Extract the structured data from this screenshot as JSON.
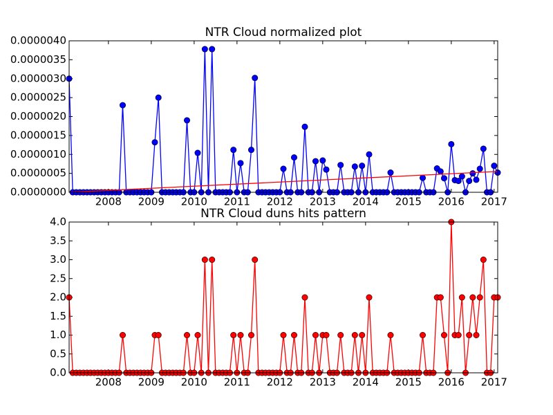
{
  "chart_data": [
    {
      "type": "line",
      "title": "NTR Cloud normalized plot",
      "x": [
        2007.083,
        2007.167,
        2007.25,
        2007.333,
        2007.417,
        2007.5,
        2007.583,
        2007.667,
        2007.75,
        2007.833,
        2007.917,
        2008,
        2008.083,
        2008.167,
        2008.25,
        2008.333,
        2008.417,
        2008.5,
        2008.583,
        2008.667,
        2008.75,
        2008.833,
        2008.917,
        2009,
        2009.083,
        2009.167,
        2009.25,
        2009.333,
        2009.417,
        2009.5,
        2009.583,
        2009.667,
        2009.75,
        2009.833,
        2009.917,
        2010,
        2010.083,
        2010.167,
        2010.25,
        2010.333,
        2010.417,
        2010.5,
        2010.583,
        2010.667,
        2010.75,
        2010.833,
        2010.917,
        2011,
        2011.083,
        2011.167,
        2011.25,
        2011.333,
        2011.417,
        2011.5,
        2011.583,
        2011.667,
        2011.75,
        2011.833,
        2011.917,
        2012,
        2012.083,
        2012.167,
        2012.25,
        2012.333,
        2012.417,
        2012.5,
        2012.583,
        2012.667,
        2012.75,
        2012.833,
        2012.917,
        2013,
        2013.083,
        2013.167,
        2013.25,
        2013.333,
        2013.417,
        2013.5,
        2013.583,
        2013.667,
        2013.75,
        2013.833,
        2013.917,
        2014,
        2014.083,
        2014.167,
        2014.25,
        2014.333,
        2014.417,
        2014.5,
        2014.583,
        2014.667,
        2014.75,
        2014.833,
        2014.917,
        2015,
        2015.083,
        2015.167,
        2015.25,
        2015.333,
        2015.417,
        2015.5,
        2015.583,
        2015.667,
        2015.75,
        2015.833,
        2015.917,
        2016,
        2016.083,
        2016.167,
        2016.25,
        2016.333,
        2016.417,
        2016.5,
        2016.583,
        2016.667,
        2016.75,
        2016.833,
        2016.917,
        2017,
        2017.083
      ],
      "series": [
        {
          "color": "#0000ff",
          "values": [
            3e-06,
            0,
            0,
            0,
            0,
            0,
            0,
            0,
            0,
            0,
            0,
            0,
            0,
            0,
            0,
            2.3e-06,
            0,
            0,
            0,
            0,
            0,
            0,
            0,
            0,
            1.32e-06,
            2.5e-06,
            0,
            0,
            0,
            0,
            0,
            0,
            0,
            1.9e-06,
            0,
            0,
            1.04e-06,
            0,
            3.78e-06,
            0,
            3.78e-06,
            0,
            0,
            0,
            0,
            0,
            1.12e-06,
            0,
            7.7e-07,
            0,
            0,
            1.12e-06,
            3.02e-06,
            0,
            0,
            0,
            0,
            0,
            0,
            0,
            6.2e-07,
            0,
            0,
            9.2e-07,
            0,
            0,
            1.73e-06,
            0,
            0,
            8.2e-07,
            0,
            8.4e-07,
            6e-07,
            0,
            0,
            0,
            7.2e-07,
            0,
            0,
            0,
            6.8e-07,
            0,
            7e-07,
            0,
            1e-06,
            0,
            0,
            0,
            0,
            0,
            5.2e-07,
            0,
            0,
            0,
            0,
            0,
            0,
            0,
            0,
            3.8e-07,
            0,
            0,
            0,
            6.3e-07,
            5.5e-07,
            3.7e-07,
            0,
            1.27e-06,
            3.2e-07,
            3e-07,
            4.2e-07,
            0,
            3e-07,
            5e-07,
            3.3e-07,
            6.2e-07,
            1.15e-06,
            0,
            0,
            7e-07,
            5.2e-07
          ]
        }
      ],
      "trend": {
        "x": [
          2007.083,
          2017.083
        ],
        "values": [
          0,
          5.5e-07
        ],
        "color": "#ff0000"
      },
      "xlim": [
        2007.083,
        2017.083
      ],
      "xticks": [
        2008,
        2009,
        2010,
        2011,
        2012,
        2013,
        2014,
        2015,
        2016,
        2017
      ],
      "ylim": [
        0,
        4e-06
      ],
      "yticks": [
        {
          "value": 0,
          "label": "0.0000000"
        },
        {
          "value": 5e-07,
          "label": "0.0000005"
        },
        {
          "value": 1e-06,
          "label": "0.0000010"
        },
        {
          "value": 1.5e-06,
          "label": "0.0000015"
        },
        {
          "value": 2e-06,
          "label": "0.0000020"
        },
        {
          "value": 2.5e-06,
          "label": "0.0000025"
        },
        {
          "value": 3e-06,
          "label": "0.0000030"
        },
        {
          "value": 3.5e-06,
          "label": "0.0000035"
        },
        {
          "value": 4e-06,
          "label": "0.0000040"
        }
      ]
    },
    {
      "type": "line",
      "title": "NTR Cloud duns hits pattern",
      "x": [
        2007.083,
        2007.167,
        2007.25,
        2007.333,
        2007.417,
        2007.5,
        2007.583,
        2007.667,
        2007.75,
        2007.833,
        2007.917,
        2008,
        2008.083,
        2008.167,
        2008.25,
        2008.333,
        2008.417,
        2008.5,
        2008.583,
        2008.667,
        2008.75,
        2008.833,
        2008.917,
        2009,
        2009.083,
        2009.167,
        2009.25,
        2009.333,
        2009.417,
        2009.5,
        2009.583,
        2009.667,
        2009.75,
        2009.833,
        2009.917,
        2010,
        2010.083,
        2010.167,
        2010.25,
        2010.333,
        2010.417,
        2010.5,
        2010.583,
        2010.667,
        2010.75,
        2010.833,
        2010.917,
        2011,
        2011.083,
        2011.167,
        2011.25,
        2011.333,
        2011.417,
        2011.5,
        2011.583,
        2011.667,
        2011.75,
        2011.833,
        2011.917,
        2012,
        2012.083,
        2012.167,
        2012.25,
        2012.333,
        2012.417,
        2012.5,
        2012.583,
        2012.667,
        2012.75,
        2012.833,
        2012.917,
        2013,
        2013.083,
        2013.167,
        2013.25,
        2013.333,
        2013.417,
        2013.5,
        2013.583,
        2013.667,
        2013.75,
        2013.833,
        2013.917,
        2014,
        2014.083,
        2014.167,
        2014.25,
        2014.333,
        2014.417,
        2014.5,
        2014.583,
        2014.667,
        2014.75,
        2014.833,
        2014.917,
        2015,
        2015.083,
        2015.167,
        2015.25,
        2015.333,
        2015.417,
        2015.5,
        2015.583,
        2015.667,
        2015.75,
        2015.833,
        2015.917,
        2016,
        2016.083,
        2016.167,
        2016.25,
        2016.333,
        2016.417,
        2016.5,
        2016.583,
        2016.667,
        2016.75,
        2016.833,
        2016.917,
        2017,
        2017.083
      ],
      "series": [
        {
          "color": "#ff0000",
          "values": [
            2,
            0,
            0,
            0,
            0,
            0,
            0,
            0,
            0,
            0,
            0,
            0,
            0,
            0,
            0,
            1,
            0,
            0,
            0,
            0,
            0,
            0,
            0,
            0,
            1,
            1,
            0,
            0,
            0,
            0,
            0,
            0,
            0,
            1,
            0,
            0,
            1,
            0,
            3,
            0,
            3,
            0,
            0,
            0,
            0,
            0,
            1,
            0,
            1,
            0,
            0,
            1,
            3,
            0,
            0,
            0,
            0,
            0,
            0,
            0,
            1,
            0,
            0,
            1,
            0,
            0,
            2,
            0,
            0,
            1,
            0,
            1,
            1,
            0,
            0,
            0,
            1,
            0,
            0,
            0,
            1,
            0,
            1,
            0,
            2,
            0,
            0,
            0,
            0,
            0,
            1,
            0,
            0,
            0,
            0,
            0,
            0,
            0,
            0,
            1,
            0,
            0,
            0,
            2,
            2,
            1,
            0,
            4,
            1,
            1,
            2,
            0,
            1,
            2,
            1,
            2,
            3,
            0,
            0,
            2,
            2
          ]
        }
      ],
      "xlim": [
        2007.083,
        2017.083
      ],
      "xticks": [
        2008,
        2009,
        2010,
        2011,
        2012,
        2013,
        2014,
        2015,
        2016,
        2017
      ],
      "ylim": [
        0,
        4
      ],
      "yticks": [
        {
          "value": 0,
          "label": "0.0"
        },
        0.5,
        {
          "value": 1,
          "label": "1.0"
        },
        1.5,
        {
          "value": 2,
          "label": "2.0"
        },
        2.5,
        {
          "value": 3,
          "label": "3.0"
        },
        3.5,
        {
          "value": 4,
          "label": "4.0"
        }
      ]
    }
  ]
}
